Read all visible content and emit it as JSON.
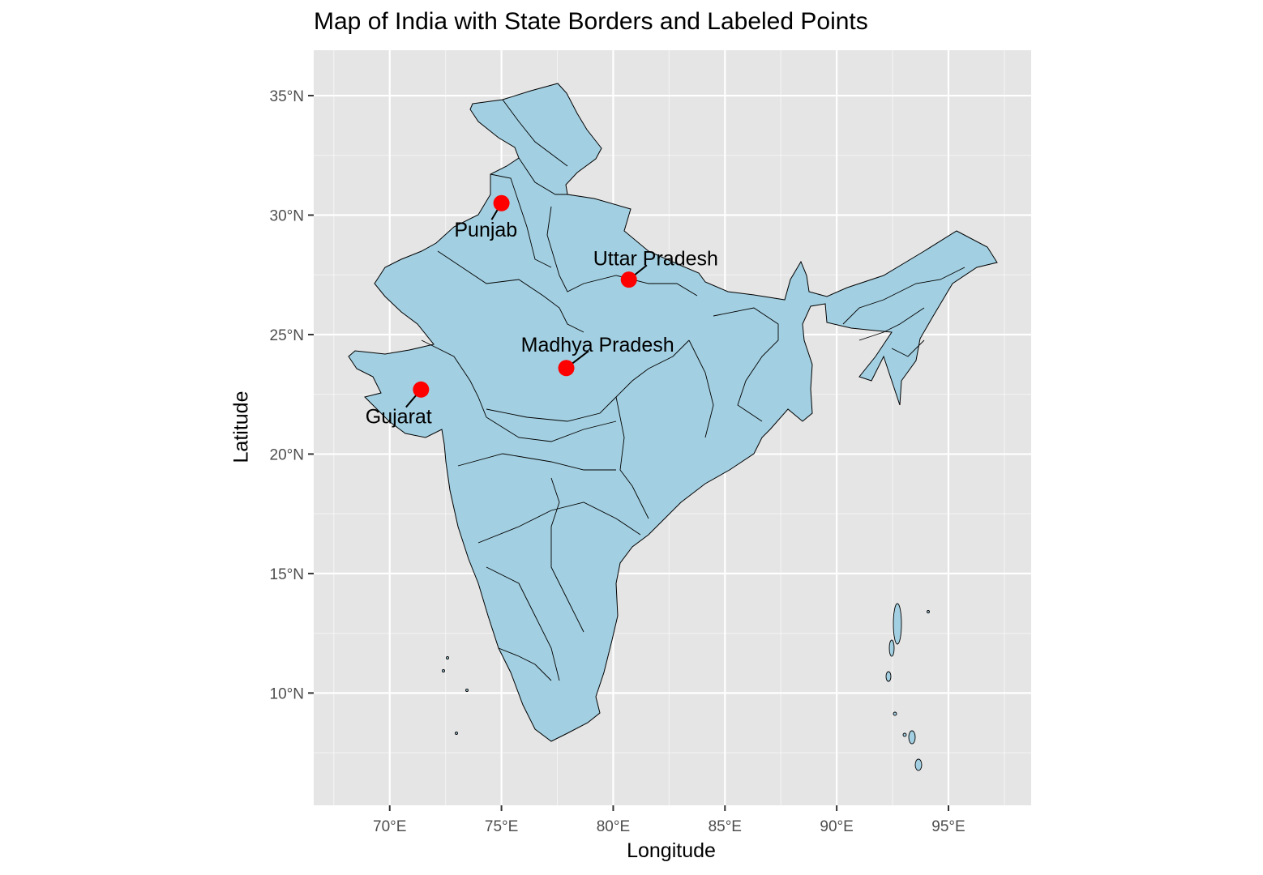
{
  "title": "Map of India with State Borders and Labeled Points",
  "xlabel": "Longitude",
  "ylabel": "Latitude",
  "colors": {
    "panel": "#e5e5e5",
    "grid": "#ffffff",
    "land_fill": "#a2cfe1",
    "border": "#000000",
    "point": "#ff0000"
  },
  "chart_data": {
    "type": "map",
    "xlim": [
      66.6,
      98.7
    ],
    "ylim": [
      5.3,
      36.9
    ],
    "x_ticks": [
      {
        "value": 70,
        "label": "70°E"
      },
      {
        "value": 75,
        "label": "75°E"
      },
      {
        "value": 80,
        "label": "80°E"
      },
      {
        "value": 85,
        "label": "85°E"
      },
      {
        "value": 90,
        "label": "90°E"
      },
      {
        "value": 95,
        "label": "95°E"
      }
    ],
    "y_ticks": [
      {
        "value": 10,
        "label": "10°N"
      },
      {
        "value": 15,
        "label": "15°N"
      },
      {
        "value": 20,
        "label": "20°N"
      },
      {
        "value": 25,
        "label": "25°N"
      },
      {
        "value": 30,
        "label": "30°N"
      },
      {
        "value": 35,
        "label": "35°N"
      }
    ],
    "points": [
      {
        "label": "Punjab",
        "lon": 75.0,
        "lat": 30.5,
        "label_lon": 74.3,
        "label_lat": 29.4
      },
      {
        "label": "Uttar Pradesh",
        "lon": 80.7,
        "lat": 27.3,
        "label_lon": 81.9,
        "label_lat": 28.2
      },
      {
        "label": "Madhya Pradesh",
        "lon": 77.9,
        "lat": 23.6,
        "label_lon": 79.3,
        "label_lat": 24.6
      },
      {
        "label": "Gujarat",
        "lon": 71.4,
        "lat": 22.7,
        "label_lon": 70.4,
        "label_lat": 21.6
      }
    ]
  }
}
